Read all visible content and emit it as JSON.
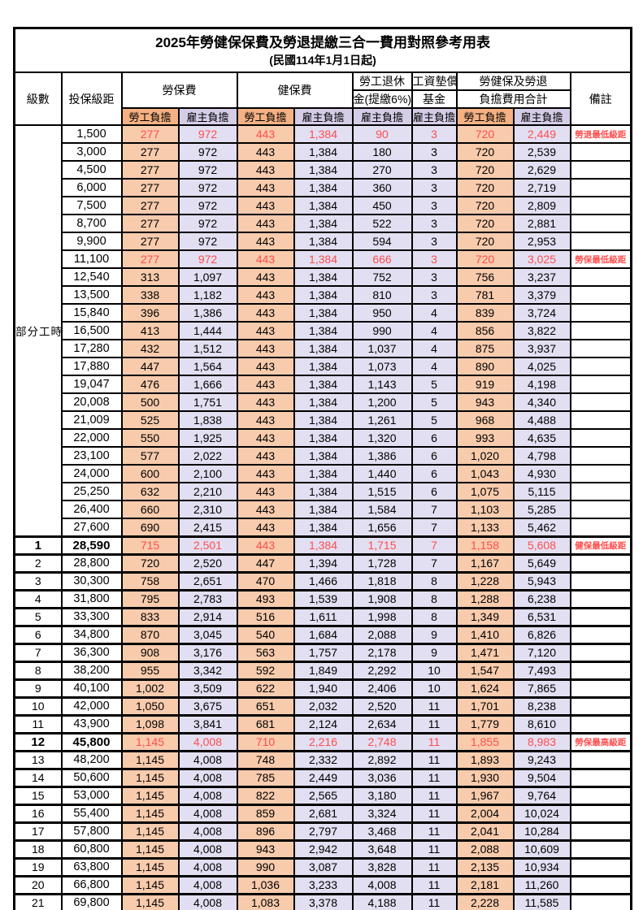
{
  "title": "2025年勞健保保費及勞退提繳三合一費用對照參考用表",
  "subtitle": "(民國114年1月1日起)",
  "colors": {
    "employee_header_bg": "#F4B183",
    "employee_cell_bg": "#F8CBAD",
    "employer_header_bg": "#D5CDE7",
    "employer_cell_bg": "#E3DFF2",
    "highlight_red": "#FF4D4D"
  },
  "header": {
    "level": "級數",
    "bracket": "投保級距",
    "labor_ins": "勞保費",
    "health_ins": "健保費",
    "pension_line1": "勞工退休",
    "pension_line2": "金(提繳6%)",
    "wage_fund_line1": "工資墊償",
    "wage_fund_line2": "基金",
    "total_line1": "勞健保及勞退",
    "total_line2": "負擔費用合計",
    "employee": "勞工負擔",
    "employer": "雇主負擔",
    "note": "備註"
  },
  "part_time_label": "部分工時",
  "rows": [
    {
      "level": "",
      "bracket": "1,500",
      "values": [
        "277",
        "972",
        "443",
        "1,384",
        "90",
        "3",
        "720",
        "2,449"
      ],
      "note": "勞退最低級距",
      "red": true,
      "bold": false
    },
    {
      "level": "",
      "bracket": "3,000",
      "values": [
        "277",
        "972",
        "443",
        "1,384",
        "180",
        "3",
        "720",
        "2,539"
      ],
      "note": "",
      "red": false,
      "bold": false
    },
    {
      "level": "",
      "bracket": "4,500",
      "values": [
        "277",
        "972",
        "443",
        "1,384",
        "270",
        "3",
        "720",
        "2,629"
      ],
      "note": "",
      "red": false,
      "bold": false
    },
    {
      "level": "",
      "bracket": "6,000",
      "values": [
        "277",
        "972",
        "443",
        "1,384",
        "360",
        "3",
        "720",
        "2,719"
      ],
      "note": "",
      "red": false,
      "bold": false
    },
    {
      "level": "",
      "bracket": "7,500",
      "values": [
        "277",
        "972",
        "443",
        "1,384",
        "450",
        "3",
        "720",
        "2,809"
      ],
      "note": "",
      "red": false,
      "bold": false
    },
    {
      "level": "",
      "bracket": "8,700",
      "values": [
        "277",
        "972",
        "443",
        "1,384",
        "522",
        "3",
        "720",
        "2,881"
      ],
      "note": "",
      "red": false,
      "bold": false
    },
    {
      "level": "",
      "bracket": "9,900",
      "values": [
        "277",
        "972",
        "443",
        "1,384",
        "594",
        "3",
        "720",
        "2,953"
      ],
      "note": "",
      "red": false,
      "bold": false
    },
    {
      "level": "",
      "bracket": "11,100",
      "values": [
        "277",
        "972",
        "443",
        "1,384",
        "666",
        "3",
        "720",
        "3,025"
      ],
      "note": "勞保最低級距",
      "red": true,
      "bold": false
    },
    {
      "level": "",
      "bracket": "12,540",
      "values": [
        "313",
        "1,097",
        "443",
        "1,384",
        "752",
        "3",
        "756",
        "3,237"
      ],
      "note": "",
      "red": false,
      "bold": false
    },
    {
      "level": "",
      "bracket": "13,500",
      "values": [
        "338",
        "1,182",
        "443",
        "1,384",
        "810",
        "3",
        "781",
        "3,379"
      ],
      "note": "",
      "red": false,
      "bold": false
    },
    {
      "level": "",
      "bracket": "15,840",
      "values": [
        "396",
        "1,386",
        "443",
        "1,384",
        "950",
        "4",
        "839",
        "3,724"
      ],
      "note": "",
      "red": false,
      "bold": false
    },
    {
      "level": "",
      "bracket": "16,500",
      "values": [
        "413",
        "1,444",
        "443",
        "1,384",
        "990",
        "4",
        "856",
        "3,822"
      ],
      "note": "",
      "red": false,
      "bold": false
    },
    {
      "level": "",
      "bracket": "17,280",
      "values": [
        "432",
        "1,512",
        "443",
        "1,384",
        "1,037",
        "4",
        "875",
        "3,937"
      ],
      "note": "",
      "red": false,
      "bold": false
    },
    {
      "level": "",
      "bracket": "17,880",
      "values": [
        "447",
        "1,564",
        "443",
        "1,384",
        "1,073",
        "4",
        "890",
        "4,025"
      ],
      "note": "",
      "red": false,
      "bold": false
    },
    {
      "level": "",
      "bracket": "19,047",
      "values": [
        "476",
        "1,666",
        "443",
        "1,384",
        "1,143",
        "5",
        "919",
        "4,198"
      ],
      "note": "",
      "red": false,
      "bold": false
    },
    {
      "level": "",
      "bracket": "20,008",
      "values": [
        "500",
        "1,751",
        "443",
        "1,384",
        "1,200",
        "5",
        "943",
        "4,340"
      ],
      "note": "",
      "red": false,
      "bold": false
    },
    {
      "level": "",
      "bracket": "21,009",
      "values": [
        "525",
        "1,838",
        "443",
        "1,384",
        "1,261",
        "5",
        "968",
        "4,488"
      ],
      "note": "",
      "red": false,
      "bold": false
    },
    {
      "level": "",
      "bracket": "22,000",
      "values": [
        "550",
        "1,925",
        "443",
        "1,384",
        "1,320",
        "6",
        "993",
        "4,635"
      ],
      "note": "",
      "red": false,
      "bold": false
    },
    {
      "level": "",
      "bracket": "23,100",
      "values": [
        "577",
        "2,022",
        "443",
        "1,384",
        "1,386",
        "6",
        "1,020",
        "4,798"
      ],
      "note": "",
      "red": false,
      "bold": false
    },
    {
      "level": "",
      "bracket": "24,000",
      "values": [
        "600",
        "2,100",
        "443",
        "1,384",
        "1,440",
        "6",
        "1,043",
        "4,930"
      ],
      "note": "",
      "red": false,
      "bold": false
    },
    {
      "level": "",
      "bracket": "25,250",
      "values": [
        "632",
        "2,210",
        "443",
        "1,384",
        "1,515",
        "6",
        "1,075",
        "5,115"
      ],
      "note": "",
      "red": false,
      "bold": false
    },
    {
      "level": "",
      "bracket": "26,400",
      "values": [
        "660",
        "2,310",
        "443",
        "1,384",
        "1,584",
        "7",
        "1,103",
        "5,285"
      ],
      "note": "",
      "red": false,
      "bold": false
    },
    {
      "level": "",
      "bracket": "27,600",
      "values": [
        "690",
        "2,415",
        "443",
        "1,384",
        "1,656",
        "7",
        "1,133",
        "5,462"
      ],
      "note": "",
      "red": false,
      "bold": false
    },
    {
      "level": "1",
      "bracket": "28,590",
      "values": [
        "715",
        "2,501",
        "443",
        "1,384",
        "1,715",
        "7",
        "1,158",
        "5,608"
      ],
      "note": "健保最低級距",
      "red": true,
      "bold": true
    },
    {
      "level": "2",
      "bracket": "28,800",
      "values": [
        "720",
        "2,520",
        "447",
        "1,394",
        "1,728",
        "7",
        "1,167",
        "5,649"
      ],
      "note": "",
      "red": false,
      "bold": false
    },
    {
      "level": "3",
      "bracket": "30,300",
      "values": [
        "758",
        "2,651",
        "470",
        "1,466",
        "1,818",
        "8",
        "1,228",
        "5,943"
      ],
      "note": "",
      "red": false,
      "bold": false
    },
    {
      "level": "4",
      "bracket": "31,800",
      "values": [
        "795",
        "2,783",
        "493",
        "1,539",
        "1,908",
        "8",
        "1,288",
        "6,238"
      ],
      "note": "",
      "red": false,
      "bold": false
    },
    {
      "level": "5",
      "bracket": "33,300",
      "values": [
        "833",
        "2,914",
        "516",
        "1,611",
        "1,998",
        "8",
        "1,349",
        "6,531"
      ],
      "note": "",
      "red": false,
      "bold": false
    },
    {
      "level": "6",
      "bracket": "34,800",
      "values": [
        "870",
        "3,045",
        "540",
        "1,684",
        "2,088",
        "9",
        "1,410",
        "6,826"
      ],
      "note": "",
      "red": false,
      "bold": false
    },
    {
      "level": "7",
      "bracket": "36,300",
      "values": [
        "908",
        "3,176",
        "563",
        "1,757",
        "2,178",
        "9",
        "1,471",
        "7,120"
      ],
      "note": "",
      "red": false,
      "bold": false
    },
    {
      "level": "8",
      "bracket": "38,200",
      "values": [
        "955",
        "3,342",
        "592",
        "1,849",
        "2,292",
        "10",
        "1,547",
        "7,493"
      ],
      "note": "",
      "red": false,
      "bold": false
    },
    {
      "level": "9",
      "bracket": "40,100",
      "values": [
        "1,002",
        "3,509",
        "622",
        "1,940",
        "2,406",
        "10",
        "1,624",
        "7,865"
      ],
      "note": "",
      "red": false,
      "bold": false
    },
    {
      "level": "10",
      "bracket": "42,000",
      "values": [
        "1,050",
        "3,675",
        "651",
        "2,032",
        "2,520",
        "11",
        "1,701",
        "8,238"
      ],
      "note": "",
      "red": false,
      "bold": false
    },
    {
      "level": "11",
      "bracket": "43,900",
      "values": [
        "1,098",
        "3,841",
        "681",
        "2,124",
        "2,634",
        "11",
        "1,779",
        "8,610"
      ],
      "note": "",
      "red": false,
      "bold": false
    },
    {
      "level": "12",
      "bracket": "45,800",
      "values": [
        "1,145",
        "4,008",
        "710",
        "2,216",
        "2,748",
        "11",
        "1,855",
        "8,983"
      ],
      "note": "勞保最高級距",
      "red": true,
      "bold": true
    },
    {
      "level": "13",
      "bracket": "48,200",
      "values": [
        "1,145",
        "4,008",
        "748",
        "2,332",
        "2,892",
        "11",
        "1,893",
        "9,243"
      ],
      "note": "",
      "red": false,
      "bold": false
    },
    {
      "level": "14",
      "bracket": "50,600",
      "values": [
        "1,145",
        "4,008",
        "785",
        "2,449",
        "3,036",
        "11",
        "1,930",
        "9,504"
      ],
      "note": "",
      "red": false,
      "bold": false
    },
    {
      "level": "15",
      "bracket": "53,000",
      "values": [
        "1,145",
        "4,008",
        "822",
        "2,565",
        "3,180",
        "11",
        "1,967",
        "9,764"
      ],
      "note": "",
      "red": false,
      "bold": false
    },
    {
      "level": "16",
      "bracket": "55,400",
      "values": [
        "1,145",
        "4,008",
        "859",
        "2,681",
        "3,324",
        "11",
        "2,004",
        "10,024"
      ],
      "note": "",
      "red": false,
      "bold": false
    },
    {
      "level": "17",
      "bracket": "57,800",
      "values": [
        "1,145",
        "4,008",
        "896",
        "2,797",
        "3,468",
        "11",
        "2,041",
        "10,284"
      ],
      "note": "",
      "red": false,
      "bold": false
    },
    {
      "level": "18",
      "bracket": "60,800",
      "values": [
        "1,145",
        "4,008",
        "943",
        "2,942",
        "3,648",
        "11",
        "2,088",
        "10,609"
      ],
      "note": "",
      "red": false,
      "bold": false
    },
    {
      "level": "19",
      "bracket": "63,800",
      "values": [
        "1,145",
        "4,008",
        "990",
        "3,087",
        "3,828",
        "11",
        "2,135",
        "10,934"
      ],
      "note": "",
      "red": false,
      "bold": false
    },
    {
      "level": "20",
      "bracket": "66,800",
      "values": [
        "1,145",
        "4,008",
        "1,036",
        "3,233",
        "4,008",
        "11",
        "2,181",
        "11,260"
      ],
      "note": "",
      "red": false,
      "bold": false
    },
    {
      "level": "21",
      "bracket": "69,800",
      "values": [
        "1,145",
        "4,008",
        "1,083",
        "3,378",
        "4,188",
        "11",
        "2,228",
        "11,585"
      ],
      "note": "",
      "red": false,
      "bold": false
    }
  ],
  "part_time_row_count": 23,
  "value_column_kinds": [
    "emp",
    "er",
    "emp",
    "er",
    "er",
    "er",
    "emp",
    "er"
  ],
  "value_column_names": [
    "labor-ins-employee",
    "labor-ins-employer",
    "health-ins-employee",
    "health-ins-employer",
    "pension-employer",
    "wage-fund-employer",
    "total-employee",
    "total-employer"
  ]
}
